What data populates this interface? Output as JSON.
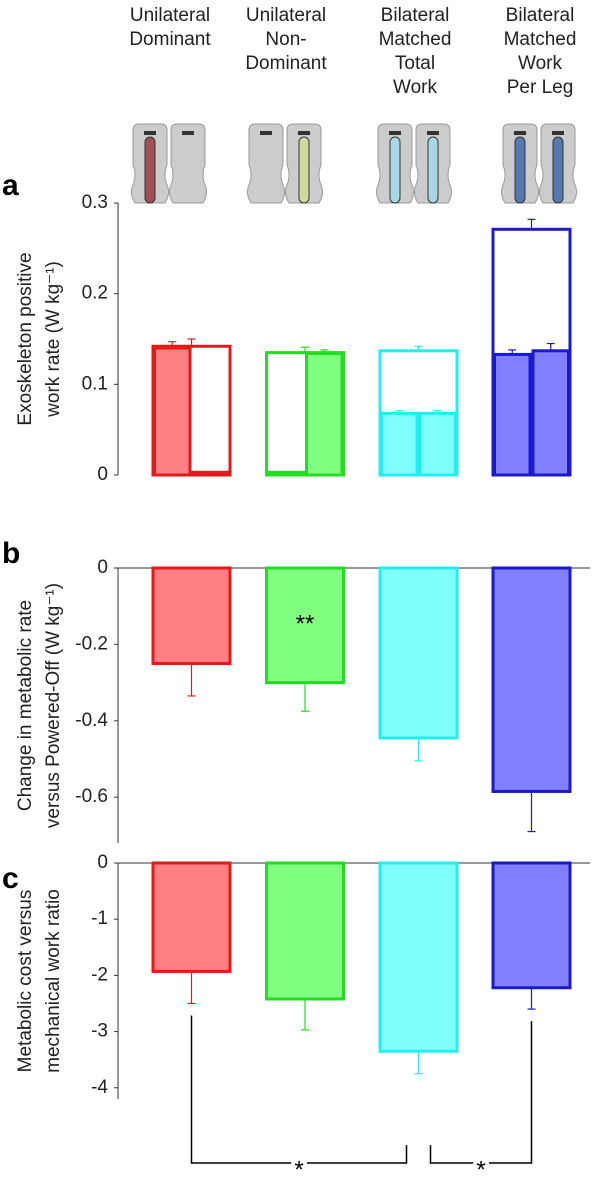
{
  "chart_data": [
    {
      "type": "grouped-bar",
      "label": "a",
      "categories": [
        [
          "Unilateral",
          "Dominant"
        ],
        [
          "Unilateral",
          "Non-",
          "Dominant"
        ],
        [
          "Bilateral",
          "Matched",
          "Total",
          "Work"
        ],
        [
          "Bilateral",
          "Matched",
          "Work",
          "Per Leg"
        ]
      ],
      "ylabel": [
        "Exoskeleton positive",
        "work rate (W kg⁻¹)"
      ],
      "colors": [
        "#e31a1c",
        "#22dd22",
        "#22eeee",
        "#1a1acc"
      ],
      "fill_colors": [
        "#ff8080",
        "#80ff80",
        "#80ffff",
        "#8080ff"
      ],
      "totals": [
        0.142,
        0.135,
        0.137,
        0.271
      ],
      "total_errors": [
        0.008,
        0.006,
        0.005,
        0.011
      ],
      "left": [
        0.14,
        0.003,
        0.068,
        0.133
      ],
      "left_errors": [
        0.007,
        null,
        0.003,
        0.005
      ],
      "right": [
        0.003,
        0.134,
        0.068,
        0.137
      ],
      "right_errors": [
        null,
        0.004,
        0.003,
        0.008
      ],
      "ylim": [
        0,
        0.3
      ],
      "yticks": [
        0,
        0.1,
        0.2,
        0.3
      ]
    },
    {
      "type": "bar",
      "label": "b",
      "ylabel": [
        "Change in metabolic rate",
        "versus Powered-Off (W kg⁻¹)"
      ],
      "colors": [
        "#e31a1c",
        "#22dd22",
        "#22eeee",
        "#1a1acc"
      ],
      "fill_colors": [
        "#ff8080",
        "#80ff80",
        "#80ffff",
        "#8080ff"
      ],
      "values": [
        -0.25,
        -0.3,
        -0.445,
        -0.585
      ],
      "errors": [
        0.085,
        0.075,
        0.06,
        0.105
      ],
      "annotations": [
        {
          "text": "**",
          "category": 1
        }
      ],
      "ylim": [
        -0.72,
        0
      ],
      "yticks": [
        -0.6,
        -0.4,
        -0.2,
        0
      ]
    },
    {
      "type": "bar",
      "label": "c",
      "ylabel": [
        "Metabolic cost versus",
        "mechanical work ratio"
      ],
      "colors": [
        "#e31a1c",
        "#22dd22",
        "#22eeee",
        "#1a1acc"
      ],
      "fill_colors": [
        "#ff8080",
        "#80ff80",
        "#80ffff",
        "#8080ff"
      ],
      "values": [
        -1.93,
        -2.42,
        -3.35,
        -2.22
      ],
      "errors": [
        0.57,
        0.55,
        0.4,
        0.38
      ],
      "brackets": [
        {
          "from": 0,
          "to": 2,
          "text": "*"
        },
        {
          "from": 2,
          "to": 3,
          "text": "*"
        }
      ],
      "ylim": [
        -4.2,
        0
      ],
      "yticks": [
        -4,
        -3,
        -2,
        -1,
        0
      ]
    }
  ]
}
